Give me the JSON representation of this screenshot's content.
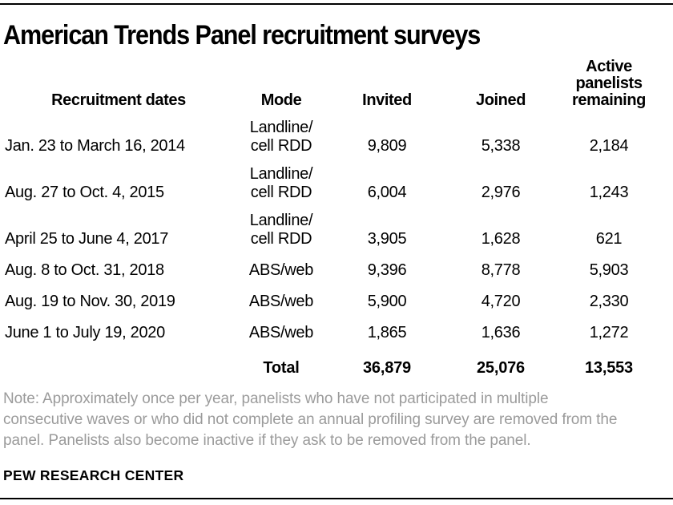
{
  "page": {
    "title": "American Trends Panel recruitment surveys",
    "note": "Note: Approximately once per year, panelists who have not participated in multiple\nconsecutive waves or who did not complete an annual profiling survey are removed from the\npanel. Panelists also become inactive if they ask to be removed from the panel.",
    "source": "PEW RESEARCH CENTER"
  },
  "table": {
    "headers": {
      "dates": "Recruitment dates",
      "mode": "Mode",
      "invited": "Invited",
      "joined": "Joined",
      "active": "Active\npanelists\nremaining"
    },
    "rows": [
      {
        "dates": "Jan. 23 to March 16, 2014",
        "mode": "Landline/\ncell RDD",
        "invited": "9,809",
        "joined": "5,338",
        "active": "2,184"
      },
      {
        "dates": "Aug. 27 to Oct. 4, 2015",
        "mode": "Landline/\ncell RDD",
        "invited": "6,004",
        "joined": "2,976",
        "active": "1,243"
      },
      {
        "dates": "April 25 to June 4, 2017",
        "mode": "Landline/\ncell RDD",
        "invited": "3,905",
        "joined": "1,628",
        "active": "621"
      },
      {
        "dates": "Aug. 8 to Oct. 31, 2018",
        "mode": "ABS/web",
        "invited": "9,396",
        "joined": "8,778",
        "active": "5,903"
      },
      {
        "dates": "Aug. 19 to Nov. 30, 2019",
        "mode": "ABS/web",
        "invited": "5,900",
        "joined": "4,720",
        "active": "2,330"
      },
      {
        "dates": "June 1 to July 19, 2020",
        "mode": "ABS/web",
        "invited": "1,865",
        "joined": "1,636",
        "active": "1,272"
      }
    ],
    "total": {
      "label": "Total",
      "invited": "36,879",
      "joined": "25,076",
      "active": "13,553"
    }
  },
  "colors": {
    "text": "#000000",
    "note_gray": "#9b9b9b",
    "rule": "#000000",
    "background": "#ffffff"
  },
  "chart_data": {
    "type": "table",
    "title": "American Trends Panel recruitment surveys",
    "columns": [
      "Recruitment dates",
      "Mode",
      "Invited",
      "Joined",
      "Active panelists remaining"
    ],
    "rows": [
      [
        "Jan. 23 to March 16, 2014",
        "Landline/cell RDD",
        9809,
        5338,
        2184
      ],
      [
        "Aug. 27 to Oct. 4, 2015",
        "Landline/cell RDD",
        6004,
        2976,
        1243
      ],
      [
        "April 25 to June 4, 2017",
        "Landline/cell RDD",
        3905,
        1628,
        621
      ],
      [
        "Aug. 8 to Oct. 31, 2018",
        "ABS/web",
        9396,
        8778,
        5903
      ],
      [
        "Aug. 19 to Nov. 30, 2019",
        "ABS/web",
        5900,
        4720,
        2330
      ],
      [
        "June 1 to July 19, 2020",
        "ABS/web",
        1865,
        1636,
        1272
      ]
    ],
    "total_row": [
      "",
      "Total",
      36879,
      25076,
      13553
    ],
    "note": "Note: Approximately once per year, panelists who have not participated in multiple consecutive waves or who did not complete an annual profiling survey are removed from the panel. Panelists also become inactive if they ask to be removed from the panel.",
    "source": "PEW RESEARCH CENTER"
  }
}
